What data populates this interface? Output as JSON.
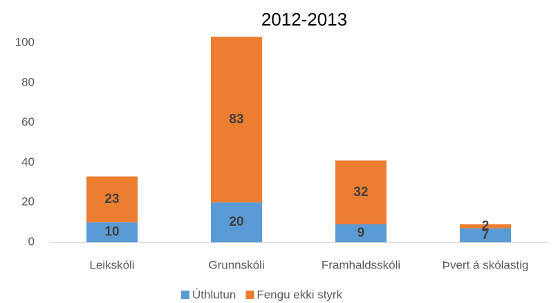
{
  "chart_data": {
    "type": "stacked_bar",
    "title": "2012-2013",
    "categories": [
      "Leikskóli",
      "Grunnskóli",
      "Framhaldsskóli",
      "Þvert á skólastig"
    ],
    "series": [
      {
        "name": "Úthlutun",
        "color": "#5b9bd5",
        "values": [
          10,
          20,
          9,
          7
        ]
      },
      {
        "name": "Fengu ekki styrk",
        "color": "#ed7d31",
        "values": [
          23,
          83,
          32,
          2
        ]
      }
    ],
    "ylim": [
      0,
      100
    ],
    "yticks": [
      0,
      20,
      40,
      60,
      80,
      100
    ],
    "grid": false,
    "legend": "bottom"
  }
}
